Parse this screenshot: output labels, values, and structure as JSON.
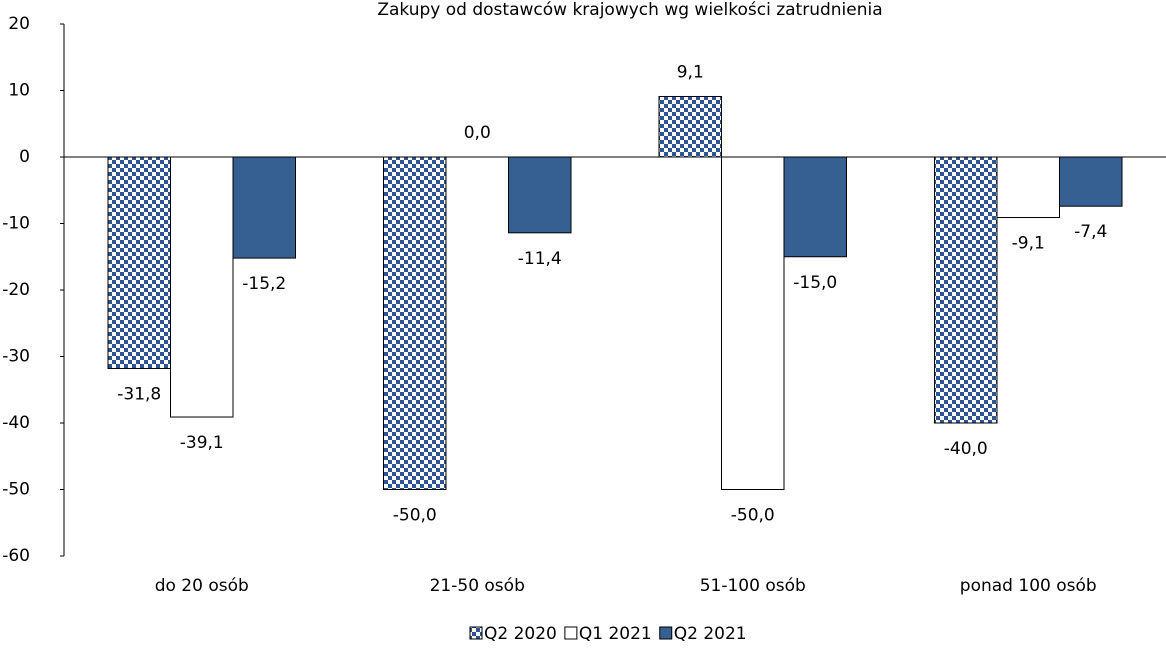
{
  "chart_data": {
    "type": "bar",
    "title": "Zakupy od dostawców krajowych wg wielkości zatrudnienia",
    "categories": [
      "do 20 osób",
      "21-50 osób",
      "51-100 osób",
      "ponad 100 osób"
    ],
    "series": [
      {
        "name": "Q2 2020",
        "color": "#2e5591",
        "fill": "checkerboard",
        "values": [
          -31.8,
          -50.0,
          9.1,
          -40.0
        ],
        "value_labels": [
          "-31,8",
          "-50,0",
          "9,1",
          "-40,0"
        ]
      },
      {
        "name": "Q1 2021",
        "color": "#ffffff",
        "values": [
          -39.1,
          0.0,
          -50.0,
          -9.1
        ],
        "value_labels": [
          "-39,1",
          "0,0",
          "-50,0",
          "-9,1"
        ]
      },
      {
        "name": "Q2 2021",
        "color": "#376092",
        "values": [
          -15.2,
          -11.4,
          -15.0,
          -7.4
        ],
        "value_labels": [
          "-15,2",
          "-11,4",
          "-15,0",
          "-7,4"
        ]
      }
    ],
    "ylim": [
      -60,
      20
    ],
    "yticks": [
      20,
      10,
      0,
      -10,
      -20,
      -30,
      -40,
      -50,
      -60
    ],
    "grid": false,
    "legend": "bottom"
  }
}
